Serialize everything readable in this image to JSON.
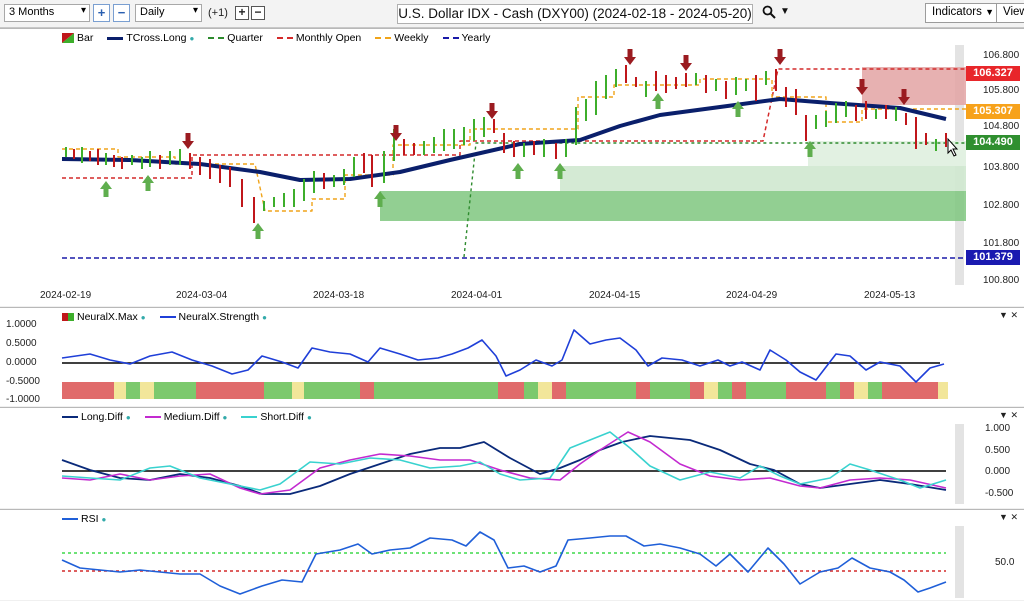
{
  "toolbar": {
    "period": "3 Months",
    "interval": "Daily",
    "offset_label": "(+1)",
    "plus": "+",
    "minus": "−",
    "title": "U.S. Dollar IDX - Cash (DXY00) (2024-02-18 - 2024-05-20)",
    "indicators_label": "Indicators",
    "view_label": "View"
  },
  "main_legend": {
    "bar": "Bar",
    "tcross": "TCross.Long",
    "quarter": "Quarter",
    "monthly": "Monthly Open",
    "weekly": "Weekly",
    "yearly": "Yearly"
  },
  "main_axis": [
    "106.800",
    "105.800",
    "104.800",
    "103.800",
    "102.800",
    "101.800",
    "100.800"
  ],
  "price_badges": {
    "monthly": "106.327",
    "weekly": "105.307",
    "quarter": "104.490",
    "yearly": "101.379"
  },
  "dates": [
    "2024-02-19",
    "2024-03-04",
    "2024-03-18",
    "2024-04-01",
    "2024-04-15",
    "2024-04-29",
    "2024-05-13"
  ],
  "neural_legend": {
    "max": "NeuralX.Max",
    "strength": "NeuralX.Strength"
  },
  "neural_axis": [
    "1.0000",
    "0.5000",
    "0.0000",
    "-0.5000",
    "-1.0000"
  ],
  "diff_legend": {
    "long": "Long.Diff",
    "medium": "Medium.Diff",
    "short": "Short.Diff"
  },
  "diff_axis": [
    "1.000",
    "0.500",
    "0.000",
    "-0.500"
  ],
  "rsi_legend": {
    "rsi": "RSI"
  },
  "rsi_axis": [
    "50.0"
  ],
  "colors": {
    "bull": "#3dae2b",
    "bear": "#c0171b",
    "tcross": "#0a1f6b",
    "quarter": "#2e8b2e",
    "monthly": "#d42a2a",
    "weekly": "#f0a41a",
    "yearly": "#1a1aa8",
    "strength": "#1f3fd8",
    "long": "#0a2a7a",
    "medium": "#c32ad0",
    "short": "#39d2cf",
    "rsi": "#1f5fd8"
  }
}
